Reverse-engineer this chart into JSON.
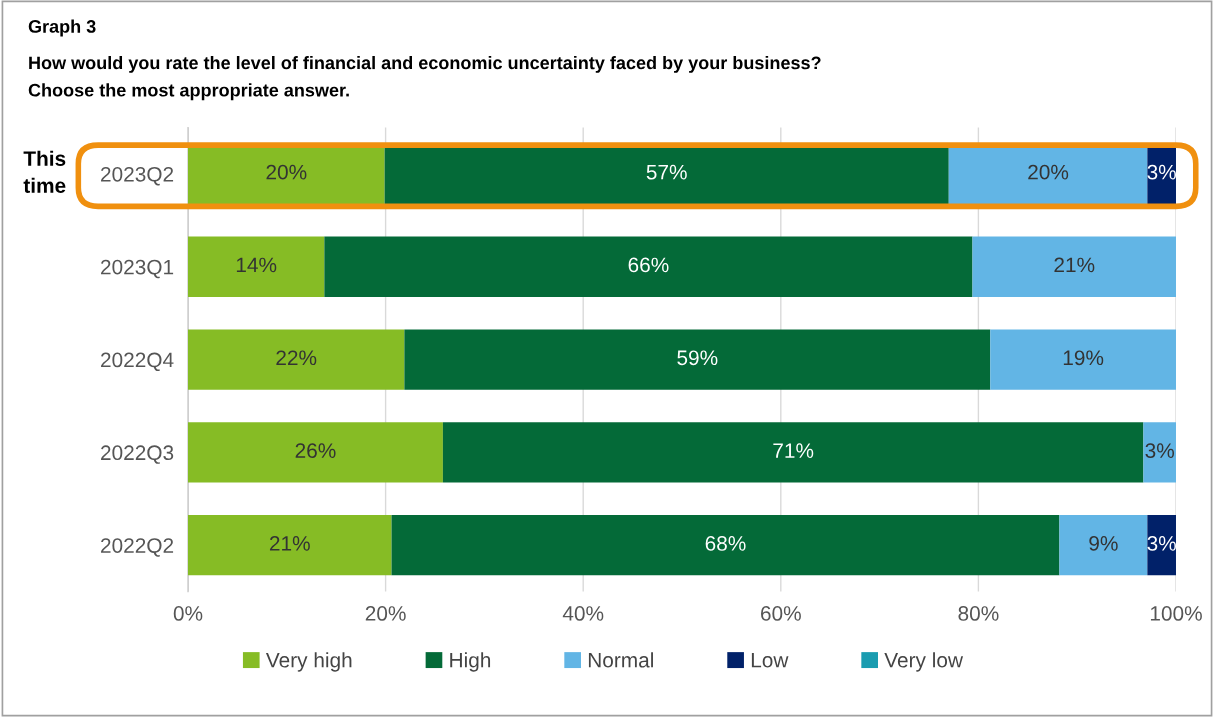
{
  "chart_data": {
    "type": "bar",
    "orientation": "horizontal",
    "stacked": true,
    "title": "Graph 3",
    "subtitle": "How would you rate the level of financial and economic uncertainty faced by your business?\nChoose the most appropriate answer.",
    "categories": [
      "2023Q2",
      "2023Q1",
      "2022Q4",
      "2022Q3",
      "2022Q2"
    ],
    "series": [
      {
        "name": "Very high",
        "color": "#86bc25",
        "values": [
          19.9,
          13.8,
          21.9,
          25.8,
          20.6
        ],
        "value_labels": [
          "20%",
          "14%",
          "22%",
          "26%",
          "21%"
        ]
      },
      {
        "name": "High",
        "color": "#046a38",
        "values": [
          57.1,
          65.6,
          59.3,
          70.9,
          67.6
        ],
        "value_labels": [
          "57%",
          "66%",
          "59%",
          "71%",
          "68%"
        ]
      },
      {
        "name": "Normal",
        "color": "#62b5e5",
        "values": [
          20.1,
          20.6,
          18.8,
          3.3,
          8.9
        ],
        "value_labels": [
          "20%",
          "21%",
          "19%",
          "3%",
          "9%"
        ]
      },
      {
        "name": "Low",
        "color": "#012169",
        "values": [
          2.9,
          null,
          null,
          null,
          2.9
        ],
        "value_labels": [
          "3%",
          null,
          null,
          null,
          "3%"
        ]
      },
      {
        "name": "Very low",
        "color": "#1a9cb0",
        "values": [
          null,
          null,
          null,
          null,
          null
        ]
      }
    ],
    "xlim": [
      0,
      100
    ],
    "xticks": [
      {
        "value": 0,
        "label": "0%"
      },
      {
        "value": 20,
        "label": "20%"
      },
      {
        "value": 40,
        "label": "40%"
      },
      {
        "value": 60,
        "label": "60%"
      },
      {
        "value": 80,
        "label": "80%"
      },
      {
        "value": 100,
        "label": "100%"
      }
    ],
    "grid": "x",
    "legend": "bottom",
    "annotations": [
      "This time"
    ]
  }
}
